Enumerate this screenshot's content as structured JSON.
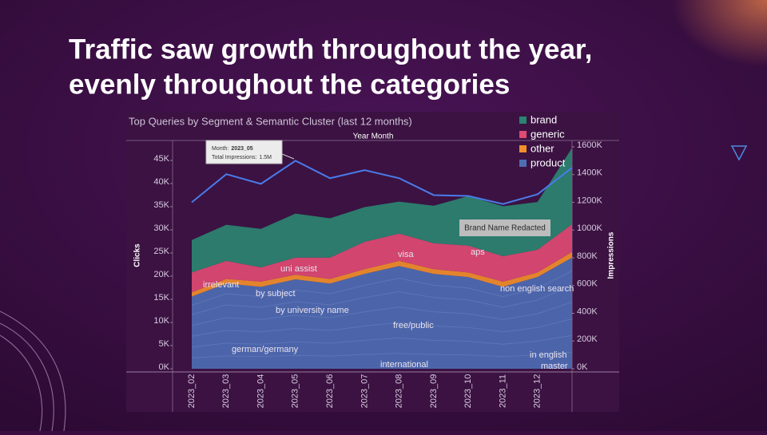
{
  "slide": {
    "title_lines": [
      "Traffic saw growth throughout the year,",
      "evenly throughout the categories"
    ]
  },
  "chart_data": {
    "type": "area",
    "title": "Top Queries by Segment & Semantic Cluster (last 12 months)",
    "x_axis_label": "Year Month",
    "y_axis_label": "Clicks",
    "y2_axis_label": "Impressions",
    "categories": [
      "2023_02",
      "2023_03",
      "2023_04",
      "2023_05",
      "2023_06",
      "2023_07",
      "2023_08",
      "2023_09",
      "2023_10",
      "2023_11",
      "2023_12",
      null
    ],
    "series": [
      {
        "name": "product",
        "color": "#4e6db3",
        "values": [
          15600,
          18400,
          17700,
          19300,
          18400,
          20500,
          22200,
          20500,
          19800,
          17700,
          19800,
          24000
        ]
      },
      {
        "name": "other",
        "color": "#f28e2b",
        "values": [
          900,
          1000,
          1100,
          1000,
          1000,
          1000,
          1100,
          1000,
          1000,
          1100,
          1000,
          1200
        ]
      },
      {
        "name": "generic",
        "color": "#de4a73",
        "values": [
          4300,
          3900,
          3100,
          3700,
          4600,
          5900,
          5900,
          5600,
          5800,
          5500,
          4900,
          6000
        ]
      },
      {
        "name": "brand",
        "color": "#2b8471",
        "values": [
          7000,
          7800,
          8300,
          9500,
          8500,
          7500,
          6900,
          8100,
          10700,
          10800,
          10300,
          16500
        ]
      }
    ],
    "impressions": {
      "color": "#4a7bea",
      "axis": "y2",
      "values": [
        1200000,
        1403000,
        1333000,
        1500000,
        1374000,
        1432000,
        1374000,
        1252000,
        1246000,
        1188000,
        1258000,
        1449000
      ]
    },
    "ylim": [
      0,
      49300
    ],
    "yticks": [
      {
        "value": 0,
        "label": "0K"
      },
      {
        "value": 5000,
        "label": "5K"
      },
      {
        "value": 10000,
        "label": "10K"
      },
      {
        "value": 15000,
        "label": "15K"
      },
      {
        "value": 20000,
        "label": "20K"
      },
      {
        "value": 25000,
        "label": "25K"
      },
      {
        "value": 30000,
        "label": "30K"
      },
      {
        "value": 35000,
        "label": "35K"
      },
      {
        "value": 40000,
        "label": "40K"
      },
      {
        "value": 45000,
        "label": "45K"
      }
    ],
    "y2lim": [
      0,
      1646000
    ],
    "y2ticks": [
      {
        "value": 0,
        "label": "0K"
      },
      {
        "value": 200000,
        "label": "200K"
      },
      {
        "value": 400000,
        "label": "400K"
      },
      {
        "value": 600000,
        "label": "600K"
      },
      {
        "value": 800000,
        "label": "800K"
      },
      {
        "value": 1000000,
        "label": "1000K"
      },
      {
        "value": 1200000,
        "label": "1200K"
      },
      {
        "value": 1400000,
        "label": "1400K"
      },
      {
        "value": 1600000,
        "label": "1600K"
      }
    ],
    "legend_order": [
      3,
      2,
      1,
      0
    ],
    "annotations": [
      "irrelevant",
      "uni assist",
      "by subject",
      "by university name",
      "free/public",
      "german/germany",
      "international",
      "in english",
      "master",
      "non english search",
      "visa",
      "aps"
    ],
    "highlight_box": "Brand Name Redacted",
    "tooltip": {
      "month_label": "Month:",
      "month": "2023_05",
      "impressions_label": "Total Impressions:",
      "impressions": "1.5M"
    }
  }
}
